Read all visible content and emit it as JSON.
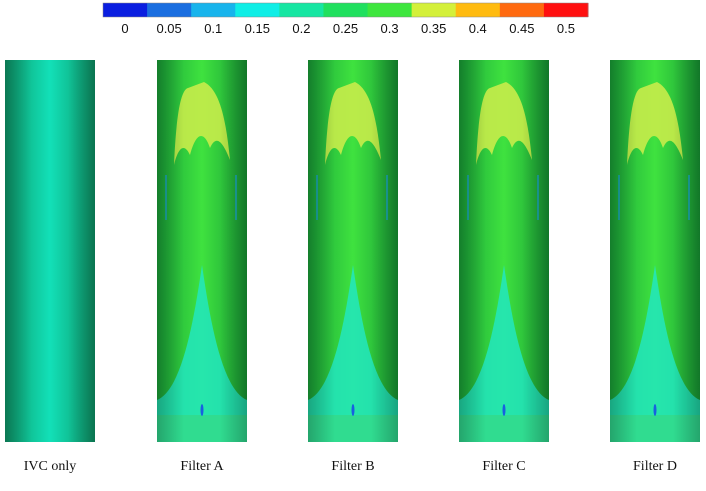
{
  "colorbar": {
    "ticks": [
      0,
      0.05,
      0.1,
      0.15,
      0.2,
      0.25,
      0.3,
      0.35,
      0.4,
      0.45,
      0.5
    ],
    "colors": [
      "#0a1ee0",
      "#1a6ee0",
      "#18b4ec",
      "#10eee6",
      "#16e6a2",
      "#20e05e",
      "#3ee63e",
      "#d4f03a",
      "#ffbb10",
      "#ff6a10",
      "#ff1010"
    ]
  },
  "panels": [
    {
      "label": "IVC only"
    },
    {
      "label": "Filter A"
    },
    {
      "label": "Filter B"
    },
    {
      "label": "Filter C"
    },
    {
      "label": "Filter D"
    }
  ]
}
